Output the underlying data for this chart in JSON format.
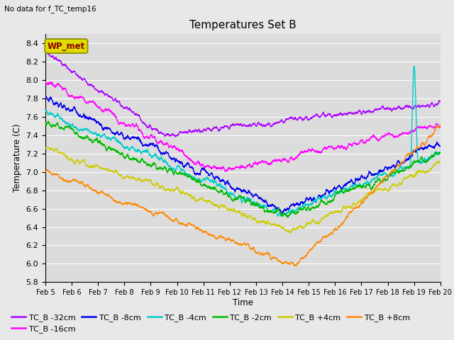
{
  "title": "Temperatures Set B",
  "subtitle": "No data for f_TC_temp16",
  "xlabel": "Time",
  "ylabel": "Temperature (C)",
  "ylim": [
    5.8,
    8.5
  ],
  "yticks": [
    5.8,
    6.0,
    6.2,
    6.4,
    6.6,
    6.8,
    7.0,
    7.2,
    7.4,
    7.6,
    7.8,
    8.0,
    8.2,
    8.4
  ],
  "xtick_labels": [
    "Feb 5",
    "Feb 6",
    "Feb 7",
    "Feb 8",
    "Feb 9",
    "Feb 10",
    "Feb 11",
    "Feb 12",
    "Feb 13",
    "Feb 14",
    "Feb 15",
    "Feb 16",
    "Feb 17",
    "Feb 18",
    "Feb 19",
    "Feb 20"
  ],
  "series": [
    {
      "label": "TC_B -32cm",
      "color": "#AA00FF"
    },
    {
      "label": "TC_B -16cm",
      "color": "#FF00FF"
    },
    {
      "label": "TC_B -8cm",
      "color": "#0000EE"
    },
    {
      "label": "TC_B -4cm",
      "color": "#00CCCC"
    },
    {
      "label": "TC_B -2cm",
      "color": "#00BB00"
    },
    {
      "label": "TC_B +4cm",
      "color": "#CCCC00"
    },
    {
      "label": "TC_B +8cm",
      "color": "#FF8800"
    }
  ],
  "wp_met_box_color": "#DDDD00",
  "wp_met_text_color": "#880000",
  "fig_bg_color": "#E8E8E8",
  "plot_bg_color": "#DCDCDC",
  "grid_color": "#FFFFFF",
  "n_points": 3000,
  "n_days": 15
}
